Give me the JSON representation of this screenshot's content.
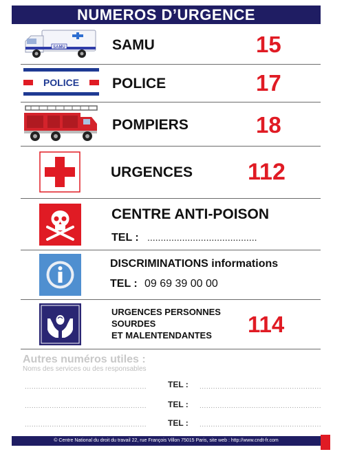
{
  "header": {
    "title": "NUMEROS D’URGENCE"
  },
  "samu": {
    "label": "SAMU",
    "number": "15",
    "van_text": "SAMU"
  },
  "police": {
    "label": "POLICE",
    "number": "17",
    "badge_text": "POLICE"
  },
  "pompiers": {
    "label": "POMPIERS",
    "number": "18"
  },
  "urgences": {
    "label": "URGENCES",
    "number": "112"
  },
  "anti_poison": {
    "label": "CENTRE ANTI-POISON",
    "tel_label": "TEL :",
    "tel_dots": "........................................."
  },
  "discriminations": {
    "label": "DISCRIMINATIONS informations",
    "tel_label": "TEL :",
    "tel_value": "09 69 39 00 00"
  },
  "sourdes": {
    "line1": "URGENCES PERSONNES",
    "line2": "SOURDES",
    "line3": "ET MALENTENDANTES",
    "number": "114"
  },
  "other": {
    "title": "Autres numéros utiles :",
    "subtitle": "Noms des services ou des responsables",
    "rows": [
      {
        "left_dots": "......................................................",
        "tel_label": "TEL :",
        "right_dots": "......................................................"
      },
      {
        "left_dots": "......................................................",
        "tel_label": "TEL :",
        "right_dots": "......................................................"
      },
      {
        "left_dots": "......................................................",
        "tel_label": "TEL :",
        "right_dots": "......................................................"
      }
    ]
  },
  "footer": {
    "text": "© Centre National du droit du travail 22, rue François Villon 75015 Paris, site web : http://www.cndt-fr.com"
  },
  "colors": {
    "navy": "#1f1d63",
    "red": "#e01b24",
    "blue": "#2f6fd1"
  }
}
